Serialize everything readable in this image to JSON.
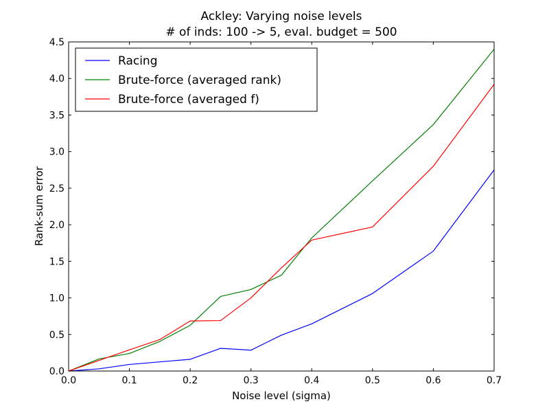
{
  "chart_data": {
    "type": "line",
    "title": "Ackley: Varying noise levels",
    "subtitle": "# of inds: 100 -> 5, eval. budget = 500",
    "xlabel": "Noise level (sigma)",
    "ylabel": "Rank-sum error",
    "xlim": [
      0.0,
      0.7
    ],
    "ylim": [
      0.0,
      4.5
    ],
    "xticks": [
      "0.0",
      "0.1",
      "0.2",
      "0.3",
      "0.4",
      "0.5",
      "0.6",
      "0.7"
    ],
    "yticks": [
      "0.0",
      "0.5",
      "1.0",
      "1.5",
      "2.0",
      "2.5",
      "3.0",
      "3.5",
      "4.0",
      "4.5"
    ],
    "grid": false,
    "legend_position": "top-left",
    "x": [
      0.0,
      0.05,
      0.1,
      0.15,
      0.2,
      0.25,
      0.3,
      0.35,
      0.4,
      0.5,
      0.6,
      0.7
    ],
    "series": [
      {
        "name": "Racing",
        "color": "#0000ff",
        "values": [
          0.0,
          0.03,
          0.09,
          0.125,
          0.16,
          0.31,
          0.285,
          0.49,
          0.645,
          1.06,
          1.64,
          2.75
        ]
      },
      {
        "name": "Brute-force (averaged rank)",
        "color": "#008000",
        "values": [
          0.0,
          0.165,
          0.24,
          0.405,
          0.625,
          1.02,
          1.115,
          1.31,
          1.82,
          2.6,
          3.37,
          4.4
        ]
      },
      {
        "name": "Brute-force (averaged f)",
        "color": "#ff0000",
        "values": [
          0.0,
          0.145,
          0.29,
          0.43,
          0.685,
          0.69,
          1.0,
          1.41,
          1.79,
          1.97,
          2.8,
          3.92
        ]
      }
    ]
  }
}
